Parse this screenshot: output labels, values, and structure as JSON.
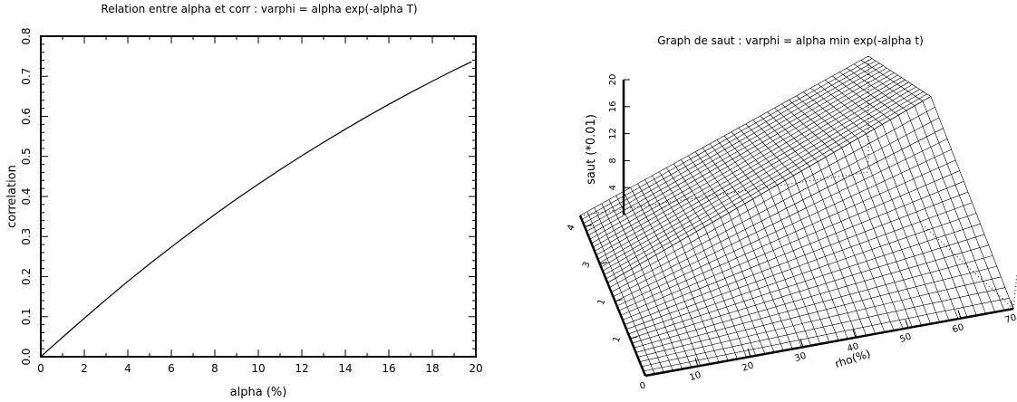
{
  "chart_data": [
    {
      "type": "line",
      "title": "Relation entre alpha et corr : varphi = alpha exp(-alpha T)",
      "xlabel": "alpha (%)",
      "ylabel": "correlation",
      "xlim": [
        0,
        20
      ],
      "ylim": [
        0,
        0.8
      ],
      "xticks": [
        "0",
        "2",
        "4",
        "6",
        "8",
        "10",
        "12",
        "14",
        "16",
        "18",
        "20"
      ],
      "yticks": [
        "0.0",
        "0.1",
        "0.2",
        "0.3",
        "0.4",
        "0.5",
        "0.6",
        "0.7",
        "0.8"
      ],
      "grid": false,
      "series": [
        {
          "x": [
            0,
            1,
            2,
            3,
            4,
            5,
            6,
            7,
            8,
            9,
            10,
            11,
            12,
            13,
            14,
            15,
            16,
            17,
            18,
            19,
            19.8
          ],
          "y": [
            0.0,
            0.0486,
            0.0961,
            0.1428,
            0.188,
            0.2316,
            0.274,
            0.3151,
            0.355,
            0.3937,
            0.4308,
            0.4668,
            0.5016,
            0.5354,
            0.568,
            0.5995,
            0.63,
            0.6594,
            0.6879,
            0.7154,
            0.7362
          ]
        }
      ]
    },
    {
      "type": "surface",
      "title": "Graph de saut : varphi = alpha min exp(-alpha t)",
      "xlabel": "rho(%)",
      "zlabel": "saut (*0.01)",
      "x_ticks": [
        "0",
        "10",
        "20",
        "30",
        "40",
        "50",
        "60",
        "70"
      ],
      "y_ticks": [
        "1",
        "2",
        "3",
        "4"
      ],
      "y_ticks_shown": [
        "1",
        "1",
        "3",
        "4"
      ],
      "z_ticks": [
        "4",
        "8",
        "12",
        "16",
        "20"
      ],
      "xlim": [
        0,
        70
      ],
      "zlim": [
        0,
        20
      ],
      "grid_lines": {
        "along_x": 40,
        "along_y": 20
      }
    }
  ]
}
